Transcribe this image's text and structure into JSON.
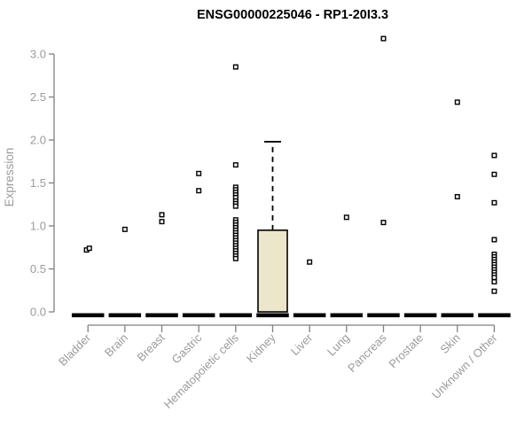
{
  "title": "ENSG00000225046 - RP1-20I3.3",
  "chart_data": {
    "type": "boxplot",
    "title": "ENSG00000225046 - RP1-20I3.3",
    "xlabel": "",
    "ylabel": "Expression",
    "ylim": [
      0,
      3.2
    ],
    "yticks": [
      0.0,
      0.5,
      1.0,
      1.5,
      2.0,
      2.5,
      3.0
    ],
    "ytick_labels": [
      "0.0",
      "0.5",
      "1.0",
      "1.5",
      "2.0",
      "2.5",
      "3.0"
    ],
    "grid": "off",
    "legend": "none",
    "categories": [
      "Bladder",
      "Brain",
      "Breast",
      "Gastric",
      "Hematopoietic cells",
      "Kidney",
      "Liver",
      "Lung",
      "Pancreas",
      "Prostate",
      "Skin",
      "Unknown / Other"
    ],
    "groups": [
      {
        "category": "Bladder",
        "median": 0,
        "points": [
          0.72,
          0.74
        ]
      },
      {
        "category": "Brain",
        "median": 0,
        "points": [
          0.96
        ]
      },
      {
        "category": "Breast",
        "median": 0,
        "points": [
          1.13,
          1.05
        ]
      },
      {
        "category": "Gastric",
        "median": 0,
        "points": [
          1.61,
          1.41
        ]
      },
      {
        "category": "Hematopoietic cells",
        "median": 0,
        "points": [
          2.85,
          1.71,
          1.45,
          1.42,
          1.39,
          1.36,
          1.33,
          1.29,
          1.26,
          1.23,
          1.07,
          1.04,
          1.01,
          0.98,
          0.95,
          0.92,
          0.89,
          0.86,
          0.83,
          0.8,
          0.77,
          0.74,
          0.71,
          0.68,
          0.65,
          0.62
        ]
      },
      {
        "category": "Kidney",
        "median": 0,
        "box": {
          "q1": 0,
          "median": 0,
          "q3": 0.95,
          "whisker_low": 0,
          "whisker_high": 1.98
        },
        "points": []
      },
      {
        "category": "Liver",
        "median": 0,
        "points": [
          0.58
        ]
      },
      {
        "category": "Lung",
        "median": 0,
        "points": [
          1.1
        ]
      },
      {
        "category": "Pancreas",
        "median": 0,
        "points": [
          3.18,
          1.04
        ]
      },
      {
        "category": "Prostate",
        "median": 0,
        "points": []
      },
      {
        "category": "Skin",
        "median": 0,
        "points": [
          2.44,
          1.34
        ]
      },
      {
        "category": "Unknown / Other",
        "median": 0,
        "points": [
          1.82,
          1.6,
          1.27,
          0.84,
          0.67,
          0.64,
          0.61,
          0.58,
          0.55,
          0.52,
          0.49,
          0.46,
          0.43,
          0.4,
          0.35,
          0.24
        ]
      }
    ],
    "colors": {
      "box_fill": "#ECE7CB",
      "data_stroke": "#000000",
      "axis_line": "#808080",
      "tick_label": "#9B9B9B",
      "title_text": "#000000"
    }
  }
}
